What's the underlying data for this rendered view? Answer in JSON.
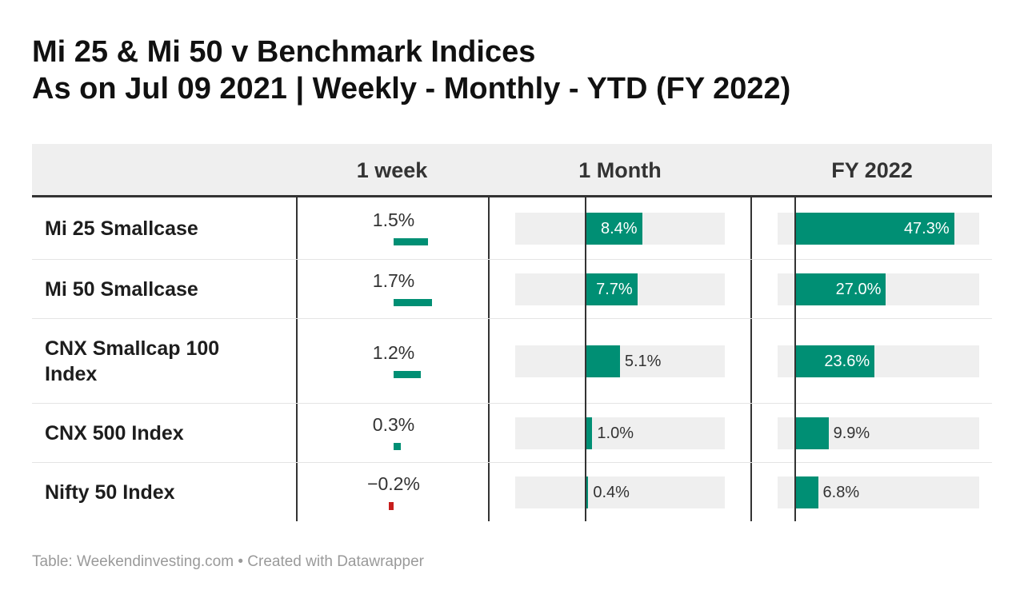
{
  "title_line1": "Mi 25 & Mi 50 v Benchmark Indices",
  "title_line2": "As on Jul 09 2021  |  Weekly - Monthly - YTD (FY 2022)",
  "footer": "Table: Weekendinvesting.com • Created with Datawrapper",
  "colors": {
    "positive": "#008f74",
    "negative": "#c71e1d",
    "track": "#efefef"
  },
  "chart_data": {
    "type": "table",
    "columns": [
      "",
      "1 week",
      "1 Month",
      "FY 2022"
    ],
    "rows": [
      {
        "name": "Mi 25 Smallcase",
        "week": 1.5,
        "week_label": "1.5%",
        "month": 8.4,
        "month_label": "8.4%",
        "fy": 47.3,
        "fy_label": "47.3%"
      },
      {
        "name": "Mi 50 Smallcase",
        "week": 1.7,
        "week_label": "1.7%",
        "month": 7.7,
        "month_label": "7.7%",
        "fy": 27.0,
        "fy_label": "27.0%"
      },
      {
        "name": "CNX Smallcap 100 Index",
        "week": 1.2,
        "week_label": "1.2%",
        "month": 5.1,
        "month_label": "5.1%",
        "fy": 23.6,
        "fy_label": "23.6%"
      },
      {
        "name": "CNX 500 Index",
        "week": 0.3,
        "week_label": "0.3%",
        "month": 1.0,
        "month_label": "1.0%",
        "fy": 9.9,
        "fy_label": "9.9%"
      },
      {
        "name": "Nifty 50 Index",
        "week": -0.2,
        "week_label": "−0.2%",
        "month": 0.4,
        "month_label": "0.4%",
        "fy": 6.8,
        "fy_label": "6.8%"
      }
    ]
  }
}
